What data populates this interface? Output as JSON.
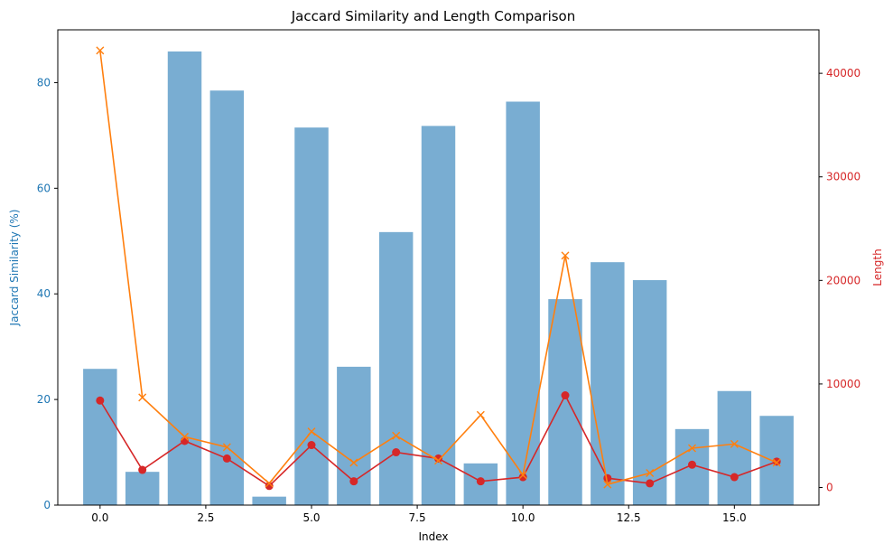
{
  "chart_data": {
    "type": "bar",
    "title": "Jaccard Similarity and Length Comparison",
    "xlabel": "Index",
    "ylabel_left": "Jaccard Similarity (%)",
    "ylabel_right": "Length",
    "x_ticks": [
      "0.0",
      "2.5",
      "5.0",
      "7.5",
      "10.0",
      "12.5",
      "15.0"
    ],
    "x_tick_values": [
      0,
      2.5,
      5,
      7.5,
      10,
      12.5,
      15
    ],
    "xlim": [
      -1.0,
      17.0
    ],
    "left_ticks": [
      "0",
      "20",
      "40",
      "60",
      "80"
    ],
    "left_tick_values": [
      0,
      20,
      40,
      60,
      80
    ],
    "ylim_left": [
      0,
      90
    ],
    "right_ticks": [
      "0",
      "10000",
      "20000",
      "30000",
      "40000"
    ],
    "right_tick_values": [
      0,
      10000,
      20000,
      30000,
      40000
    ],
    "ylim_right": [
      -1700,
      44200
    ],
    "grid": false,
    "categories": [
      0,
      1,
      2,
      3,
      4,
      5,
      6,
      7,
      8,
      9,
      10,
      11,
      12,
      13,
      14,
      15,
      16
    ],
    "series": [
      {
        "kind": "bar",
        "axis": "left",
        "color": "#1f77b4",
        "opacity": 0.6,
        "values": [
          25.8,
          6.3,
          85.9,
          78.5,
          1.6,
          71.5,
          26.2,
          51.7,
          71.8,
          7.9,
          76.4,
          39.0,
          46.0,
          42.6,
          14.4,
          21.6,
          16.9
        ]
      },
      {
        "kind": "line",
        "axis": "right",
        "color": "#d62728",
        "marker": "circle",
        "values": [
          8400,
          1700,
          4500,
          2800,
          150,
          4100,
          600,
          3400,
          2800,
          600,
          1000,
          8900,
          900,
          400,
          2200,
          1000,
          2500
        ]
      },
      {
        "kind": "line",
        "axis": "right",
        "color": "#ff7f0e",
        "marker": "x",
        "values": [
          42200,
          8700,
          4900,
          3900,
          400,
          5400,
          2400,
          5000,
          2600,
          7000,
          1200,
          22400,
          300,
          1400,
          3800,
          4200,
          2400
        ]
      }
    ]
  }
}
